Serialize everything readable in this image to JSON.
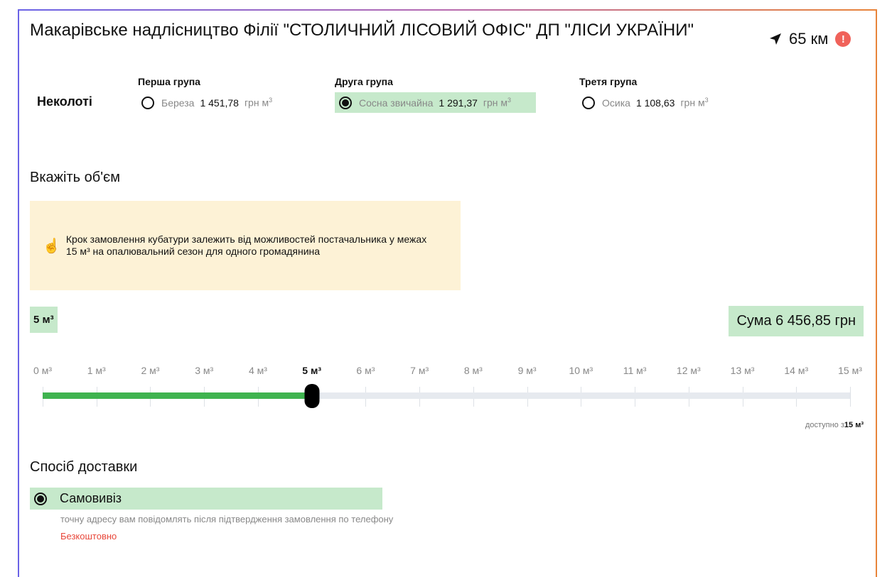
{
  "header": {
    "title": "Макарівське надлісництво Філії \"СТОЛИЧНИЙ ЛІСОВИЙ ОФІС\" ДП \"ЛІСИ УКРАЇНИ\"",
    "distance": "65 км",
    "distance_icon": "navigation-arrow-icon",
    "warning_icon": "exclamation-icon",
    "warning_color": "#f0625a"
  },
  "wood": {
    "kind": "Неколоті",
    "unit": "грн м",
    "unit_sup": "3",
    "groups": [
      {
        "label": "Перша група",
        "name": "Береза",
        "price": "1 451,78",
        "selected": false
      },
      {
        "label": "Друга група",
        "name": "Сосна звичайна",
        "price": "1 291,37",
        "selected": true
      },
      {
        "label": "Третя група",
        "name": "Осика",
        "price": "1 108,63",
        "selected": false
      }
    ]
  },
  "volume": {
    "heading": "Вкажіть об'єм",
    "note": "Крок замовлення кубатури залежить від можливостей постачальника у межах 15 м³ на опалювальний сезон для одного громадянина",
    "note_icon": "pointing-hand-icon",
    "selected_label": "5 м³",
    "sum": "Сума 6 456,85 грн",
    "value": 5,
    "min": 0,
    "max": 15,
    "ticks": [
      "0 м³",
      "1 м³",
      "2 м³",
      "3 м³",
      "4 м³",
      "5 м³",
      "6 м³",
      "7 м³",
      "8 м³",
      "9 м³",
      "10 м³",
      "11 м³",
      "12 м³",
      "13 м³",
      "14 м³",
      "15 м³"
    ],
    "available_prefix": "доступно з",
    "available_value": "15 м³",
    "fill_color": "#3fb34f"
  },
  "delivery": {
    "heading": "Спосіб доставки",
    "option": "Самовивіз",
    "note": "точну адресу вам повідомлять після підтвердження замовлення по телефону",
    "price": "Безкоштовно"
  }
}
